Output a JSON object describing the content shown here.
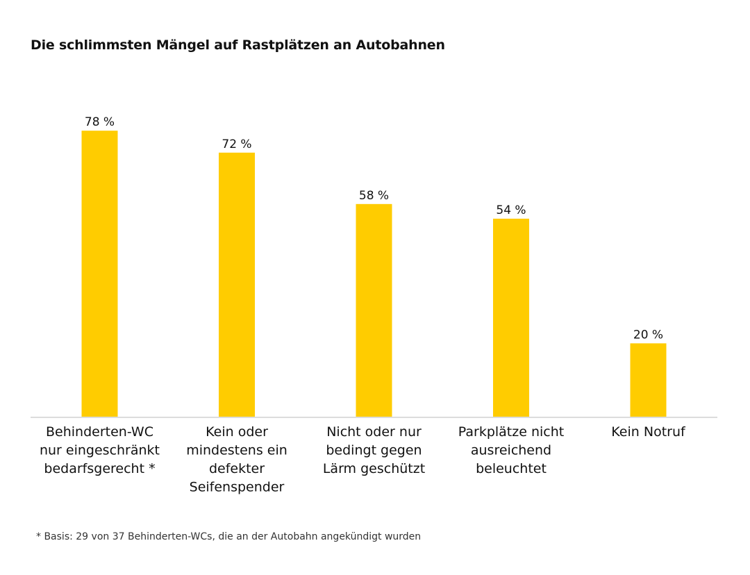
{
  "chart_data": {
    "type": "bar",
    "title": "Die schlimmsten Mängel auf Rastplätzen an Autobahnen",
    "categories": [
      "Behinderten-WC nur eingeschränkt bedarfsgerecht *",
      "Kein oder mindestens ein defekter Seifenspender",
      "Nicht oder nur bedingt gegen Lärm geschützt",
      "Parkplätze nicht ausreichend beleuchtet",
      "Kein Notruf"
    ],
    "category_lines": [
      [
        "Behinderten-WC",
        "nur eingeschränkt",
        "bedarfsgerecht *"
      ],
      [
        "Kein oder",
        "mindestens ein",
        "defekter",
        "Seifenspender"
      ],
      [
        "Nicht oder nur",
        "bedingt gegen",
        "Lärm geschützt"
      ],
      [
        "Parkplätze nicht",
        "ausreichend",
        "beleuchtet"
      ],
      [
        "Kein Notruf"
      ]
    ],
    "values": [
      78,
      72,
      58,
      54,
      20
    ],
    "value_labels": [
      "78 %",
      "72 %",
      "58 %",
      "54 %",
      "20 %"
    ],
    "unit": "%",
    "xlabel": "",
    "ylabel": "",
    "ylim": [
      0,
      100
    ],
    "grid": false,
    "legend": "none",
    "bar_color": "#FFCC00",
    "axis_color": "#C8C8C8"
  },
  "footnote": "* Basis: 29 von 37 Behinderten-WCs, die an der Autobahn angekündigt wurden"
}
